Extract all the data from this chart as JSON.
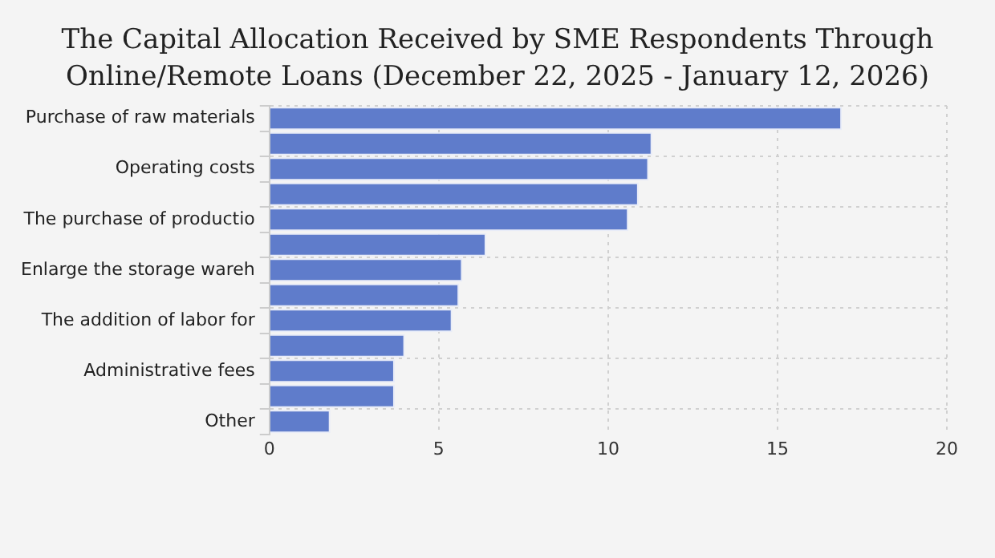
{
  "chart_data": {
    "type": "bar",
    "orientation": "horizontal",
    "title": "The Capital Allocation Received by SME Respondents Through Online/Remote Loans (December 22, 2025 - January 12, 2026)",
    "categories": [
      "Purchase of raw materials",
      null,
      "Operating costs",
      null,
      "The purchase of productio",
      null,
      "Enlarge the storage wareh",
      null,
      "The addition of labor for",
      null,
      "Administrative fees",
      null,
      "Other"
    ],
    "values": [
      16.9,
      11.3,
      11.2,
      10.9,
      10.6,
      6.4,
      5.7,
      5.6,
      5.4,
      4.0,
      3.7,
      3.7,
      1.8
    ],
    "color": "#5f7ccb",
    "xlim": [
      0,
      20
    ],
    "xticks": [
      0,
      5,
      10,
      15,
      20
    ],
    "grid": true,
    "legend": false
  }
}
